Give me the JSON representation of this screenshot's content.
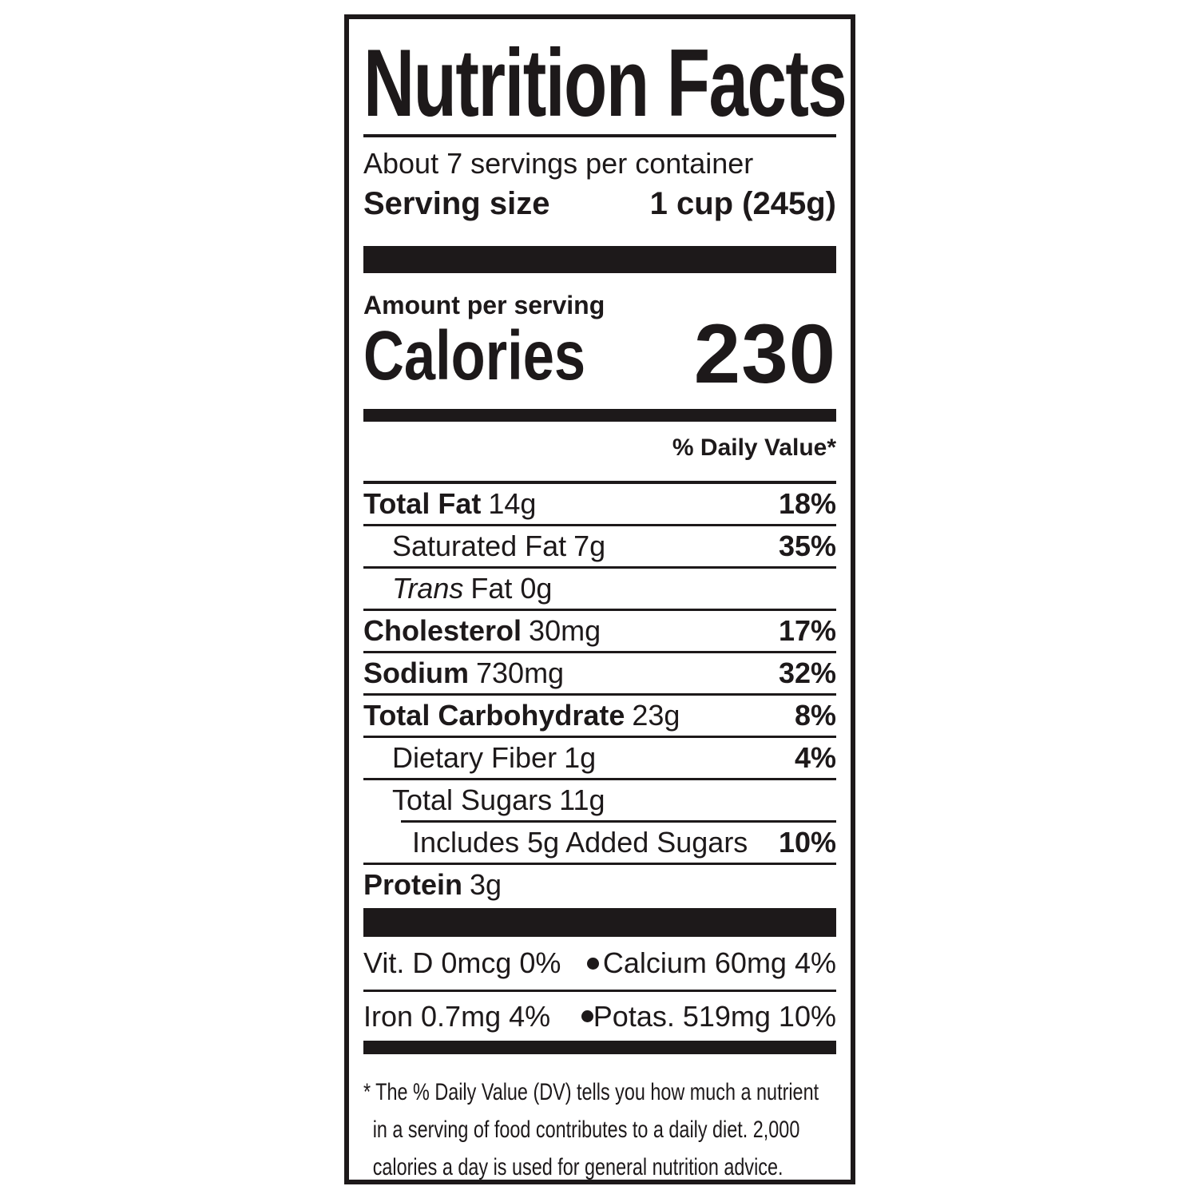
{
  "label": {
    "title": "Nutrition Facts",
    "servings_per_container": "About 7 servings per container",
    "serving_size": {
      "label": "Serving size",
      "value": "1 cup (245g)"
    },
    "amount_per_serving": "Amount per serving",
    "calories": {
      "label": "Calories",
      "value": "230"
    },
    "daily_value_header": "% Daily Value*",
    "nutrients": [
      {
        "name": "Total Fat",
        "amount": "14g",
        "dv": "18%"
      },
      {
        "name": "Saturated Fat",
        "amount": "7g",
        "dv": "35%"
      },
      {
        "name": "Trans",
        "amount": "Fat 0g",
        "dv": ""
      },
      {
        "name": "Cholesterol",
        "amount": "30mg",
        "dv": "17%"
      },
      {
        "name": "Sodium",
        "amount": "730mg",
        "dv": "32%"
      },
      {
        "name": "Total Carbohydrate",
        "amount": "23g",
        "dv": "8%"
      },
      {
        "name": "Dietary Fiber",
        "amount": "1g",
        "dv": "4%"
      },
      {
        "name": "Total Sugars",
        "amount": "11g",
        "dv": ""
      },
      {
        "name": "Includes 5g Added Sugars",
        "amount": "",
        "dv": "10%"
      },
      {
        "name": "Protein",
        "amount": "3g",
        "dv": ""
      }
    ],
    "micronutrients": [
      {
        "left": "Vit. D 0mcg 0%",
        "right": "Calcium 60mg 4%"
      },
      {
        "left": "Iron 0.7mg 4%",
        "right": "Potas. 519mg 10%"
      }
    ],
    "footnote_lines": [
      "* The % Daily Value (DV) tells you how much a nutrient",
      "in a serving of food contributes to a daily diet. 2,000",
      "calories a day is used for general nutrition advice."
    ],
    "colors": {
      "ink": "#1d191a",
      "background": "#ffffff"
    }
  }
}
